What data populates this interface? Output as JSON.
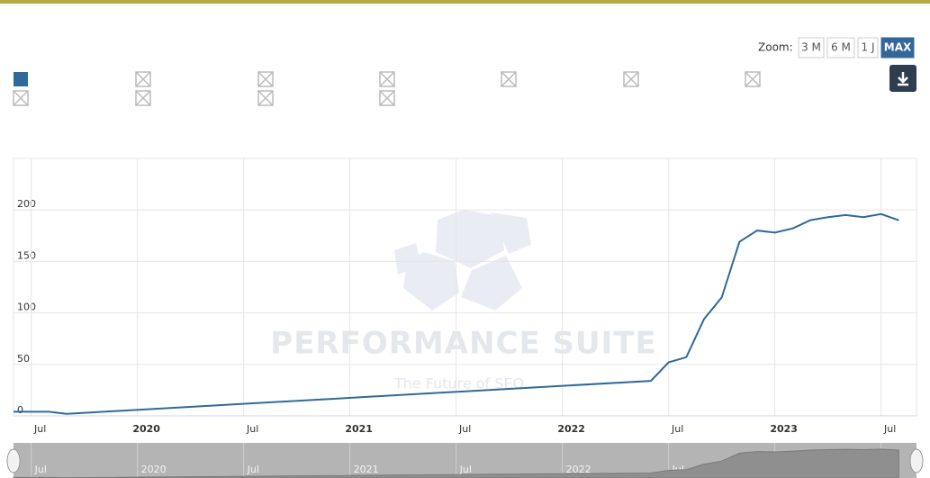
{
  "zoom": {
    "label": "Zoom:",
    "buttons": [
      "3 M",
      "6 M",
      "1 J",
      "MAX"
    ]
  },
  "watermark": {
    "title": "PERFORMANCE SUITE",
    "subtitle": "The Future of SEO"
  },
  "chart_data": {
    "type": "line",
    "x": [
      "2019-06",
      "2019-08",
      "2019-09",
      "2019-10",
      "2022-06",
      "2022-07",
      "2022-08",
      "2022-09",
      "2022-10",
      "2022-11",
      "2022-12",
      "2023-01",
      "2023-02",
      "2023-03",
      "2023-04",
      "2023-05",
      "2023-06",
      "2023-07",
      "2023-08"
    ],
    "series": [
      {
        "color": "#2f6a9a",
        "values": [
          4,
          4,
          2,
          3,
          34,
          52,
          57,
          94,
          115,
          169,
          180,
          178,
          182,
          190,
          193,
          195,
          193,
          196,
          190
        ]
      }
    ],
    "xlim": [
      "2019-06",
      "2023-09"
    ],
    "ylim": [
      0,
      250
    ],
    "xticks": [
      {
        "value": "2019-07",
        "label": "Jul"
      },
      {
        "value": "2020-01",
        "label": "2020"
      },
      {
        "value": "2020-07",
        "label": "Jul"
      },
      {
        "value": "2021-01",
        "label": "2021"
      },
      {
        "value": "2021-07",
        "label": "Jul"
      },
      {
        "value": "2022-01",
        "label": "2022"
      },
      {
        "value": "2022-07",
        "label": "Jul"
      },
      {
        "value": "2023-01",
        "label": "2023"
      },
      {
        "value": "2023-07",
        "label": "Jul"
      }
    ],
    "yticks": [
      0,
      50,
      100,
      150,
      200
    ],
    "grid": true
  }
}
